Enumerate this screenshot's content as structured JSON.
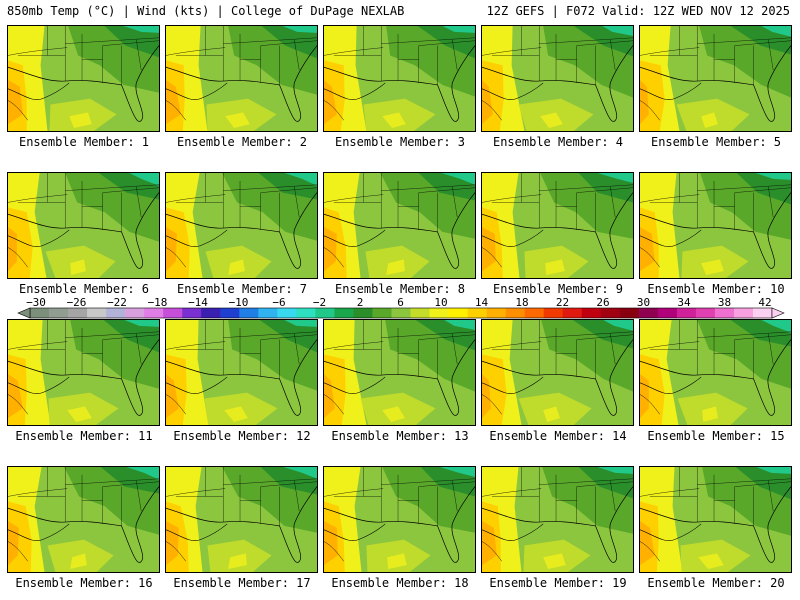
{
  "header": {
    "left": "850mb Temp (°C) | Wind (kts) | College of DuPage NEXLAB",
    "right": "12Z GEFS | F072 Valid: 12Z WED NOV 12 2025"
  },
  "members": [
    {
      "label": "Ensemble Member: 1"
    },
    {
      "label": "Ensemble Member: 2"
    },
    {
      "label": "Ensemble Member: 3"
    },
    {
      "label": "Ensemble Member: 4"
    },
    {
      "label": "Ensemble Member: 5"
    },
    {
      "label": "Ensemble Member: 6"
    },
    {
      "label": "Ensemble Member: 7"
    },
    {
      "label": "Ensemble Member: 8"
    },
    {
      "label": "Ensemble Member: 9"
    },
    {
      "label": "Ensemble Member: 10"
    },
    {
      "label": "Ensemble Member: 11"
    },
    {
      "label": "Ensemble Member: 12"
    },
    {
      "label": "Ensemble Member: 13"
    },
    {
      "label": "Ensemble Member: 14"
    },
    {
      "label": "Ensemble Member: 15"
    },
    {
      "label": "Ensemble Member: 16"
    },
    {
      "label": "Ensemble Member: 17"
    },
    {
      "label": "Ensemble Member: 18"
    },
    {
      "label": "Ensemble Member: 19"
    },
    {
      "label": "Ensemble Member: 20"
    }
  ],
  "colorbar": {
    "tick_labels": [
      "−30",
      "−26",
      "−22",
      "−18",
      "−14",
      "−10",
      "−6",
      "−2",
      "2",
      "6",
      "10",
      "14",
      "18",
      "22",
      "26",
      "30",
      "34",
      "38",
      "42"
    ],
    "colors": [
      "#7b8f7b",
      "#909d90",
      "#a5a5a5",
      "#c8c8c8",
      "#b3b3d9",
      "#d9a0e0",
      "#e07ee6",
      "#c64fd9",
      "#7a2fd0",
      "#3a1fb0",
      "#1f3fd0",
      "#1f7fe6",
      "#2fb4f0",
      "#38d9ee",
      "#2fe0c0",
      "#20c88a",
      "#1aa64a",
      "#2a8f2a",
      "#5aa82a",
      "#8cc63f",
      "#c4dd2a",
      "#f0f01a",
      "#fff000",
      "#ffd000",
      "#ffb000",
      "#ff8f00",
      "#ff6a00",
      "#f03a00",
      "#e01a10",
      "#c00010",
      "#a00010",
      "#880010",
      "#900050",
      "#b0007a",
      "#d0209a",
      "#e040b0",
      "#f070d0",
      "#f8a0e0",
      "#fcd0f0"
    ]
  }
}
